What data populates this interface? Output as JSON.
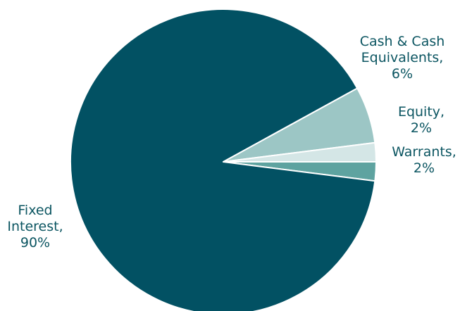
{
  "chart_data": {
    "type": "pie",
    "title": "",
    "start_angle_deg": 0,
    "direction": "clockwise",
    "slices": [
      {
        "key": "warrants",
        "label_lines": [
          "Warrants,",
          "2%"
        ],
        "value": 2,
        "color": "#5ea3a0"
      },
      {
        "key": "fixed-interest",
        "label_lines": [
          "Fixed",
          "Interest,",
          "90%"
        ],
        "value": 90,
        "color": "#025163"
      },
      {
        "key": "cash",
        "label_lines": [
          "Cash & Cash",
          "Equivalents,",
          "6%"
        ],
        "value": 6,
        "color": "#9cc6c5"
      },
      {
        "key": "equity",
        "label_lines": [
          "Equity,",
          "2%"
        ],
        "value": 2,
        "color": "#d4e6e6"
      }
    ],
    "legend": "none"
  }
}
